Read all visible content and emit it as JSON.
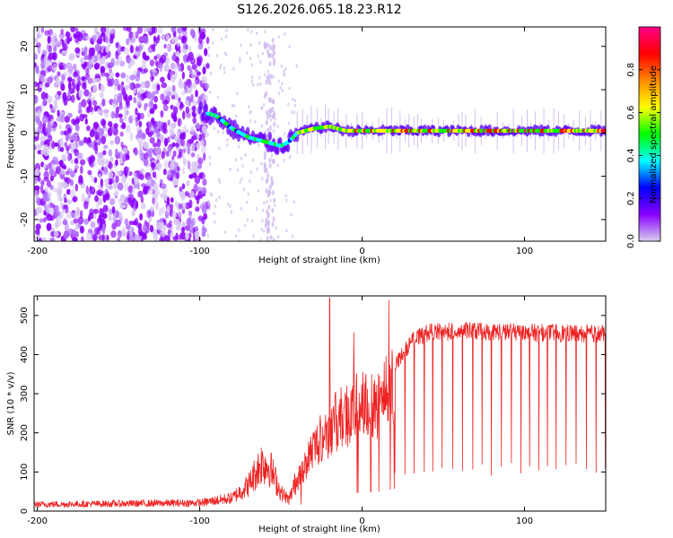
{
  "title": "S126.2026.065.18.23.R12",
  "chart_data": [
    {
      "type": "heatmap",
      "xlabel": "Height of straight line (km)",
      "ylabel": "Frequency (Hz)",
      "xlim": [
        -202,
        150
      ],
      "ylim": [
        -25,
        24.5
      ],
      "xticks": [
        -200,
        -100,
        0,
        100
      ],
      "xtick_labels": [
        "-200",
        "-100",
        "0",
        "100"
      ],
      "yticks": [
        20,
        10,
        0,
        -10,
        -20
      ],
      "ytick_labels": [
        "20",
        "10",
        "0",
        "-10",
        "-20"
      ],
      "colorbar": {
        "label": "Normalized spectral amplitude",
        "range": [
          0,
          1
        ],
        "ticks": [
          0,
          0.2,
          0.4,
          0.6,
          0.8
        ],
        "tick_labels": [
          "0.0",
          "0.2",
          "0.4",
          "0.6",
          "0.8"
        ],
        "colors": [
          "#d9ccee",
          "#8800ff",
          "#0000ff",
          "#00ffff",
          "#00ff00",
          "#ffff00",
          "#ff8800",
          "#ff0000",
          "#ff0088"
        ]
      },
      "ridge": {
        "x": [
          -100,
          -90,
          -80,
          -70,
          -60,
          -50,
          -45,
          -40,
          -30,
          -20,
          -10,
          0,
          20,
          40,
          60,
          80,
          100,
          120,
          150
        ],
        "y": [
          5,
          4,
          1,
          -1,
          -2,
          -3,
          -2,
          0,
          1,
          1.5,
          0.5,
          0.5,
          0.5,
          0.5,
          0.5,
          0.5,
          0.5,
          0.5,
          0.5
        ]
      }
    },
    {
      "type": "line",
      "xlabel": "Height of straight line (km)",
      "ylabel": "SNR (10 * v/v)",
      "xlim": [
        -202,
        150
      ],
      "ylim": [
        0,
        550
      ],
      "xticks": [
        -200,
        -100,
        0,
        100
      ],
      "xtick_labels": [
        "-200",
        "-100",
        "0",
        "100"
      ],
      "yticks": [
        0,
        100,
        200,
        300,
        400,
        500
      ],
      "ytick_labels": [
        "0",
        "100",
        "200",
        "300",
        "400",
        "500"
      ],
      "color": "#ee2222",
      "envelope": {
        "x": [
          -202,
          -150,
          -100,
          -80,
          -70,
          -62,
          -57,
          -50,
          -45,
          -40,
          -35,
          -30,
          -20,
          -10,
          0,
          10,
          20,
          30,
          40,
          60,
          80,
          100,
          120,
          150
        ],
        "y": [
          18,
          20,
          22,
          35,
          70,
          130,
          120,
          50,
          30,
          90,
          140,
          190,
          250,
          290,
          320,
          330,
          380,
          440,
          465,
          470,
          468,
          465,
          465,
          462
        ]
      }
    }
  ]
}
